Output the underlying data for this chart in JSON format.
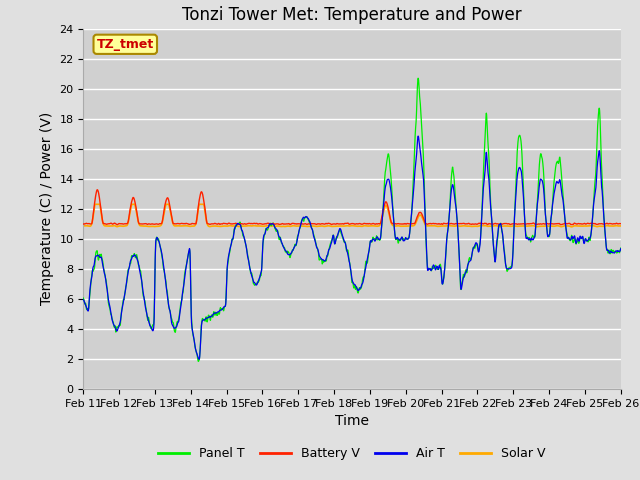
{
  "title": "Tonzi Tower Met: Temperature and Power",
  "xlabel": "Time",
  "ylabel": "Temperature (C) / Power (V)",
  "ylim": [
    0,
    24
  ],
  "yticks": [
    0,
    2,
    4,
    6,
    8,
    10,
    12,
    14,
    16,
    18,
    20,
    22,
    24
  ],
  "xtick_labels": [
    "Feb 11",
    "Feb 12",
    "Feb 13",
    "Feb 14",
    "Feb 15",
    "Feb 16",
    "Feb 17",
    "Feb 18",
    "Feb 19",
    "Feb 20",
    "Feb 21",
    "Feb 22",
    "Feb 23",
    "Feb 24",
    "Feb 25",
    "Feb 26"
  ],
  "panel_color": "#00ee00",
  "battery_color": "#ff2200",
  "air_color": "#0000ee",
  "solar_color": "#ffaa00",
  "annotation_text": "TZ_tmet",
  "annotation_bg": "#ffff99",
  "annotation_border": "#aa8800",
  "annotation_text_color": "#cc0000",
  "fig_bg": "#e0e0e0",
  "plot_bg": "#d0d0d0",
  "grid_color": "#ffffff",
  "title_fontsize": 12,
  "axis_fontsize": 10,
  "tick_fontsize": 8
}
